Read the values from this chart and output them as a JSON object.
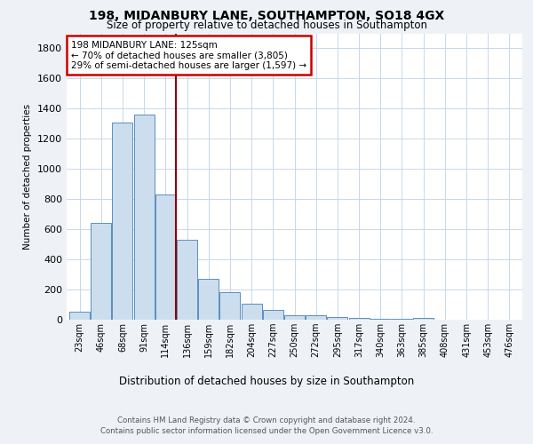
{
  "title1": "198, MIDANBURY LANE, SOUTHAMPTON, SO18 4GX",
  "title2": "Size of property relative to detached houses in Southampton",
  "xlabel": "Distribution of detached houses by size in Southampton",
  "ylabel": "Number of detached properties",
  "categories": [
    "23sqm",
    "46sqm",
    "68sqm",
    "91sqm",
    "114sqm",
    "136sqm",
    "159sqm",
    "182sqm",
    "204sqm",
    "227sqm",
    "250sqm",
    "272sqm",
    "295sqm",
    "317sqm",
    "340sqm",
    "363sqm",
    "385sqm",
    "408sqm",
    "431sqm",
    "453sqm",
    "476sqm"
  ],
  "values": [
    55,
    640,
    1305,
    1360,
    830,
    530,
    270,
    185,
    108,
    65,
    30,
    28,
    18,
    10,
    8,
    5,
    12,
    0,
    0,
    0,
    0
  ],
  "bar_color": "#ccdded",
  "bar_edge_color": "#5a8fc0",
  "vline_color": "#8b0000",
  "annotation_line1": "198 MIDANBURY LANE: 125sqm",
  "annotation_line2": "← 70% of detached houses are smaller (3,805)",
  "annotation_line3": "29% of semi-detached houses are larger (1,597) →",
  "annotation_box_color": "#ffffff",
  "annotation_box_edge": "#cc0000",
  "footer1": "Contains HM Land Registry data © Crown copyright and database right 2024.",
  "footer2": "Contains public sector information licensed under the Open Government Licence v3.0.",
  "ylim": [
    0,
    1900
  ],
  "yticks": [
    0,
    200,
    400,
    600,
    800,
    1000,
    1200,
    1400,
    1600,
    1800
  ],
  "bg_color": "#eef2f7",
  "plot_bg_color": "#ffffff",
  "grid_color": "#c8d8e8"
}
